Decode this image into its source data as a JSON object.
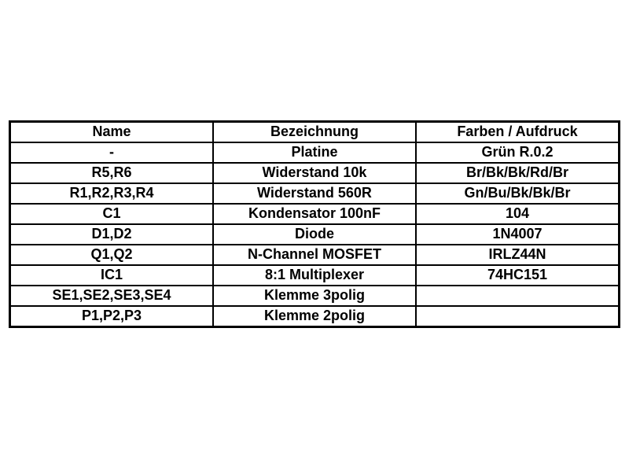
{
  "document": {
    "type": "parts-list-table",
    "language": "German"
  },
  "colors": {
    "background": "#ffffff",
    "border": "#000000",
    "text": "#000000"
  },
  "table": {
    "columns": [
      "Name",
      "Bezeichnung",
      "Farben / Aufdruck"
    ],
    "rows": [
      [
        "-",
        "Platine",
        "Grün R.0.2"
      ],
      [
        "R5,R6",
        "Widerstand 10k",
        "Br/Bk/Bk/Rd/Br"
      ],
      [
        "R1,R2,R3,R4",
        "Widerstand 560R",
        "Gn/Bu/Bk/Bk/Br"
      ],
      [
        "C1",
        "Kondensator 100nF",
        "104"
      ],
      [
        "D1,D2",
        "Diode",
        "1N4007"
      ],
      [
        "Q1,Q2",
        "N-Channel MOSFET",
        "IRLZ44N"
      ],
      [
        "IC1",
        "8:1 Multiplexer",
        "74HC151"
      ],
      [
        "SE1,SE2,SE3,SE4",
        "Klemme 3polig",
        ""
      ],
      [
        "P1,P2,P3",
        "Klemme 2polig",
        ""
      ]
    ]
  }
}
